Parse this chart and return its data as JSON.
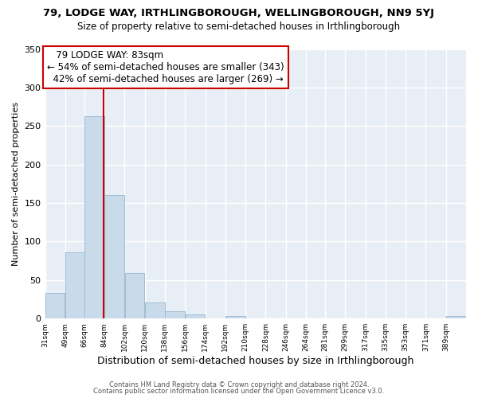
{
  "title": "79, LODGE WAY, IRTHLINGBOROUGH, WELLINGBOROUGH, NN9 5YJ",
  "subtitle": "Size of property relative to semi-detached houses in Irthlingborough",
  "xlabel": "Distribution of semi-detached houses by size in Irthlingborough",
  "ylabel": "Number of semi-detached properties",
  "bin_labels": [
    "31sqm",
    "49sqm",
    "66sqm",
    "84sqm",
    "102sqm",
    "120sqm",
    "138sqm",
    "156sqm",
    "174sqm",
    "192sqm",
    "210sqm",
    "228sqm",
    "246sqm",
    "264sqm",
    "281sqm",
    "299sqm",
    "317sqm",
    "335sqm",
    "353sqm",
    "371sqm",
    "389sqm"
  ],
  "bar_values": [
    33,
    86,
    263,
    160,
    59,
    21,
    10,
    5,
    0,
    3,
    0,
    0,
    0,
    0,
    0,
    0,
    0,
    0,
    0,
    0,
    3
  ],
  "bar_color": "#c9daea",
  "bar_edge_color": "#a0bcd4",
  "property_value": 83,
  "property_label": "79 LODGE WAY: 83sqm",
  "line_color": "#cc0000",
  "annotation_smaller": "← 54% of semi-detached houses are smaller (343)",
  "annotation_larger": "42% of semi-detached houses are larger (269) →",
  "box_edge_color": "#cc0000",
  "ylim": [
    0,
    350
  ],
  "yticks": [
    0,
    50,
    100,
    150,
    200,
    250,
    300,
    350
  ],
  "footer1": "Contains HM Land Registry data © Crown copyright and database right 2024.",
  "footer2": "Contains public sector information licensed under the Open Government Licence v3.0.",
  "fig_background": "#ffffff",
  "plot_background": "#e8eef5",
  "grid_color": "#ffffff",
  "bin_width": 18
}
